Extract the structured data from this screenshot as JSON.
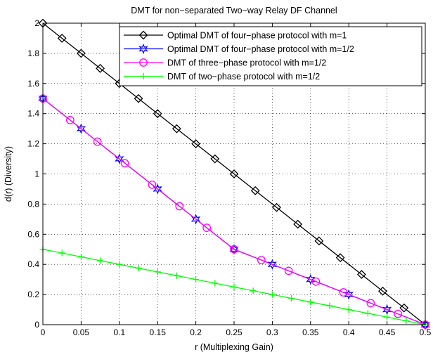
{
  "chart_data": {
    "type": "line",
    "title": "DMT for non−separated Two−way Relay DF Channel",
    "xlabel": "r (Multiplexing Gain)",
    "ylabel": "d(r) (Diversity)",
    "xlim": [
      0,
      0.5
    ],
    "ylim": [
      0,
      2
    ],
    "xticks": [
      "0",
      "0.05",
      "0.1",
      "0.15",
      "0.2",
      "0.25",
      "0.3",
      "0.35",
      "0.4",
      "0.45",
      "0.5"
    ],
    "yticks": [
      "0",
      "0.2",
      "0.4",
      "0.6",
      "0.8",
      "1",
      "1.2",
      "1.4",
      "1.6",
      "1.8",
      "2"
    ],
    "grid": true,
    "legend_position": "top-right",
    "series": [
      {
        "name": "Optimal DMT of four−phase protocol with m=1",
        "color": "#000000",
        "marker": "diamond",
        "x": [
          0,
          0.025,
          0.05,
          0.075,
          0.1,
          0.125,
          0.15,
          0.175,
          0.2,
          0.225,
          0.25,
          0.2778,
          0.3056,
          0.3333,
          0.3611,
          0.3889,
          0.4167,
          0.4444,
          0.4722,
          0.5
        ],
        "y": [
          2,
          1.9,
          1.8,
          1.7,
          1.6,
          1.5,
          1.4,
          1.3,
          1.2,
          1.1,
          1.0,
          0.8889,
          0.7778,
          0.6667,
          0.5556,
          0.4444,
          0.3333,
          0.2222,
          0.1111,
          0
        ]
      },
      {
        "name": "Optimal DMT of four−phase protocol with m=1/2",
        "color": "#0000ff",
        "marker": "hexagram",
        "x": [
          0,
          0.05,
          0.1,
          0.15,
          0.2,
          0.25,
          0.3,
          0.35,
          0.4,
          0.45,
          0.5
        ],
        "y": [
          1.5,
          1.3,
          1.1,
          0.9,
          0.7,
          0.5,
          0.4,
          0.3,
          0.2,
          0.1,
          0
        ]
      },
      {
        "name": "DMT of three−phase protocol with m=1/2",
        "color": "#ff00ff",
        "marker": "circle",
        "x": [
          0,
          0.0357,
          0.0714,
          0.1071,
          0.1429,
          0.1786,
          0.2143,
          0.25,
          0.2857,
          0.3214,
          0.3571,
          0.3929,
          0.4286,
          0.4643,
          0.5
        ],
        "y": [
          1.5,
          1.3571,
          1.2143,
          1.0714,
          0.9286,
          0.7857,
          0.6429,
          0.5,
          0.4286,
          0.3571,
          0.2857,
          0.2143,
          0.1429,
          0.0714,
          0
        ]
      },
      {
        "name": "DMT of two−phase protocol with m=1/2",
        "color": "#00ff00",
        "marker": "plus",
        "x": [
          0,
          0.025,
          0.05,
          0.075,
          0.1,
          0.125,
          0.15,
          0.175,
          0.2,
          0.225,
          0.25,
          0.275,
          0.3,
          0.325,
          0.35,
          0.375,
          0.4,
          0.425,
          0.45,
          0.475,
          0.5
        ],
        "y": [
          0.5,
          0.475,
          0.45,
          0.425,
          0.4,
          0.375,
          0.35,
          0.325,
          0.3,
          0.275,
          0.25,
          0.225,
          0.2,
          0.175,
          0.15,
          0.125,
          0.1,
          0.075,
          0.05,
          0.025,
          0
        ]
      }
    ]
  }
}
